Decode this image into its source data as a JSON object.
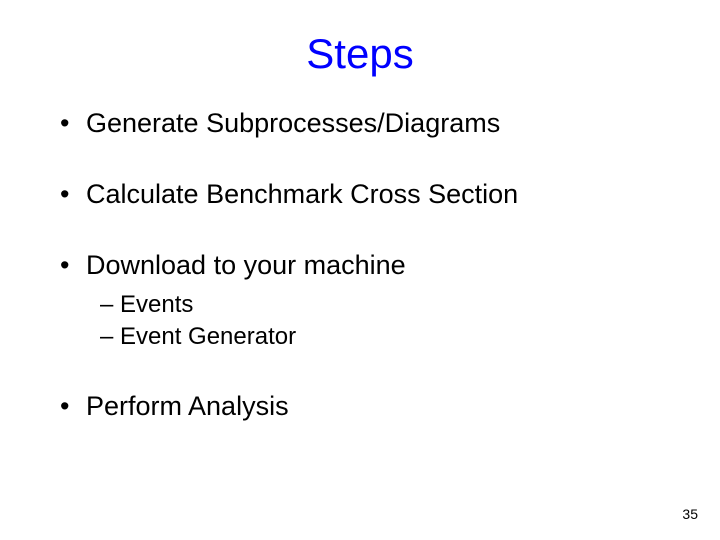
{
  "title": "Steps",
  "title_color": "#0000ff",
  "title_fontsize": 42,
  "bullets": [
    {
      "text": "Generate Subprocesses/Diagrams",
      "has_sub": false
    },
    {
      "text": "Calculate Benchmark Cross Section",
      "has_sub": false
    },
    {
      "text": "Download to your machine",
      "has_sub": true
    },
    {
      "text": "Perform Analysis",
      "has_sub": false
    }
  ],
  "sub_bullets": [
    "Events",
    "Event Generator"
  ],
  "bullet_fontsize": 27,
  "sub_fontsize": 24,
  "text_color": "#000000",
  "background_color": "#ffffff",
  "page_number": "35",
  "page_number_fontsize": 14
}
